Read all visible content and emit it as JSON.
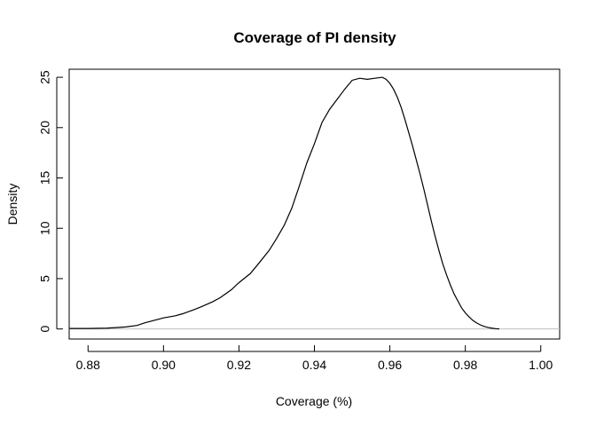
{
  "chart_data": {
    "type": "line",
    "title": "Coverage of PI density",
    "xlabel": "Coverage (%)",
    "ylabel": "Density",
    "xlim": [
      0.875,
      1.005
    ],
    "ylim": [
      -1.0,
      25.8
    ],
    "x_ticks": [
      0.88,
      0.9,
      0.92,
      0.94,
      0.96,
      0.98,
      1.0
    ],
    "x_tick_labels": [
      "0.88",
      "0.90",
      "0.92",
      "0.94",
      "0.96",
      "0.98",
      "1.00"
    ],
    "y_ticks": [
      0,
      5,
      10,
      15,
      20,
      25
    ],
    "y_tick_labels": [
      "0",
      "5",
      "10",
      "15",
      "20",
      "25"
    ],
    "grid": false,
    "legend": "none",
    "zero_line": true,
    "series": [
      {
        "x": [
          0.875,
          0.88,
          0.885,
          0.89,
          0.893,
          0.895,
          0.898,
          0.9,
          0.903,
          0.905,
          0.908,
          0.91,
          0.913,
          0.915,
          0.918,
          0.92,
          0.923,
          0.925,
          0.928,
          0.93,
          0.932,
          0.934,
          0.936,
          0.938,
          0.94,
          0.942,
          0.944,
          0.946,
          0.948,
          0.95,
          0.952,
          0.954,
          0.956,
          0.958,
          0.959,
          0.96,
          0.961,
          0.962,
          0.963,
          0.964,
          0.965,
          0.966,
          0.967,
          0.968,
          0.969,
          0.97,
          0.971,
          0.972,
          0.973,
          0.974,
          0.975,
          0.976,
          0.977,
          0.978,
          0.979,
          0.98,
          0.981,
          0.982,
          0.983,
          0.984,
          0.985,
          0.986,
          0.987,
          0.988,
          0.989
        ],
        "y": [
          0.05,
          0.05,
          0.08,
          0.2,
          0.35,
          0.6,
          0.9,
          1.1,
          1.3,
          1.5,
          1.9,
          2.2,
          2.7,
          3.1,
          3.9,
          4.6,
          5.5,
          6.4,
          7.8,
          9.0,
          10.3,
          12.0,
          14.2,
          16.5,
          18.4,
          20.5,
          21.8,
          22.8,
          23.8,
          24.7,
          24.9,
          24.8,
          24.9,
          25.0,
          24.8,
          24.4,
          23.8,
          23.0,
          22.0,
          20.8,
          19.5,
          18.2,
          16.8,
          15.4,
          13.9,
          12.3,
          10.7,
          9.2,
          7.8,
          6.5,
          5.4,
          4.4,
          3.5,
          2.8,
          2.1,
          1.6,
          1.2,
          0.85,
          0.6,
          0.4,
          0.25,
          0.15,
          0.08,
          0.03,
          0.0
        ]
      }
    ]
  }
}
